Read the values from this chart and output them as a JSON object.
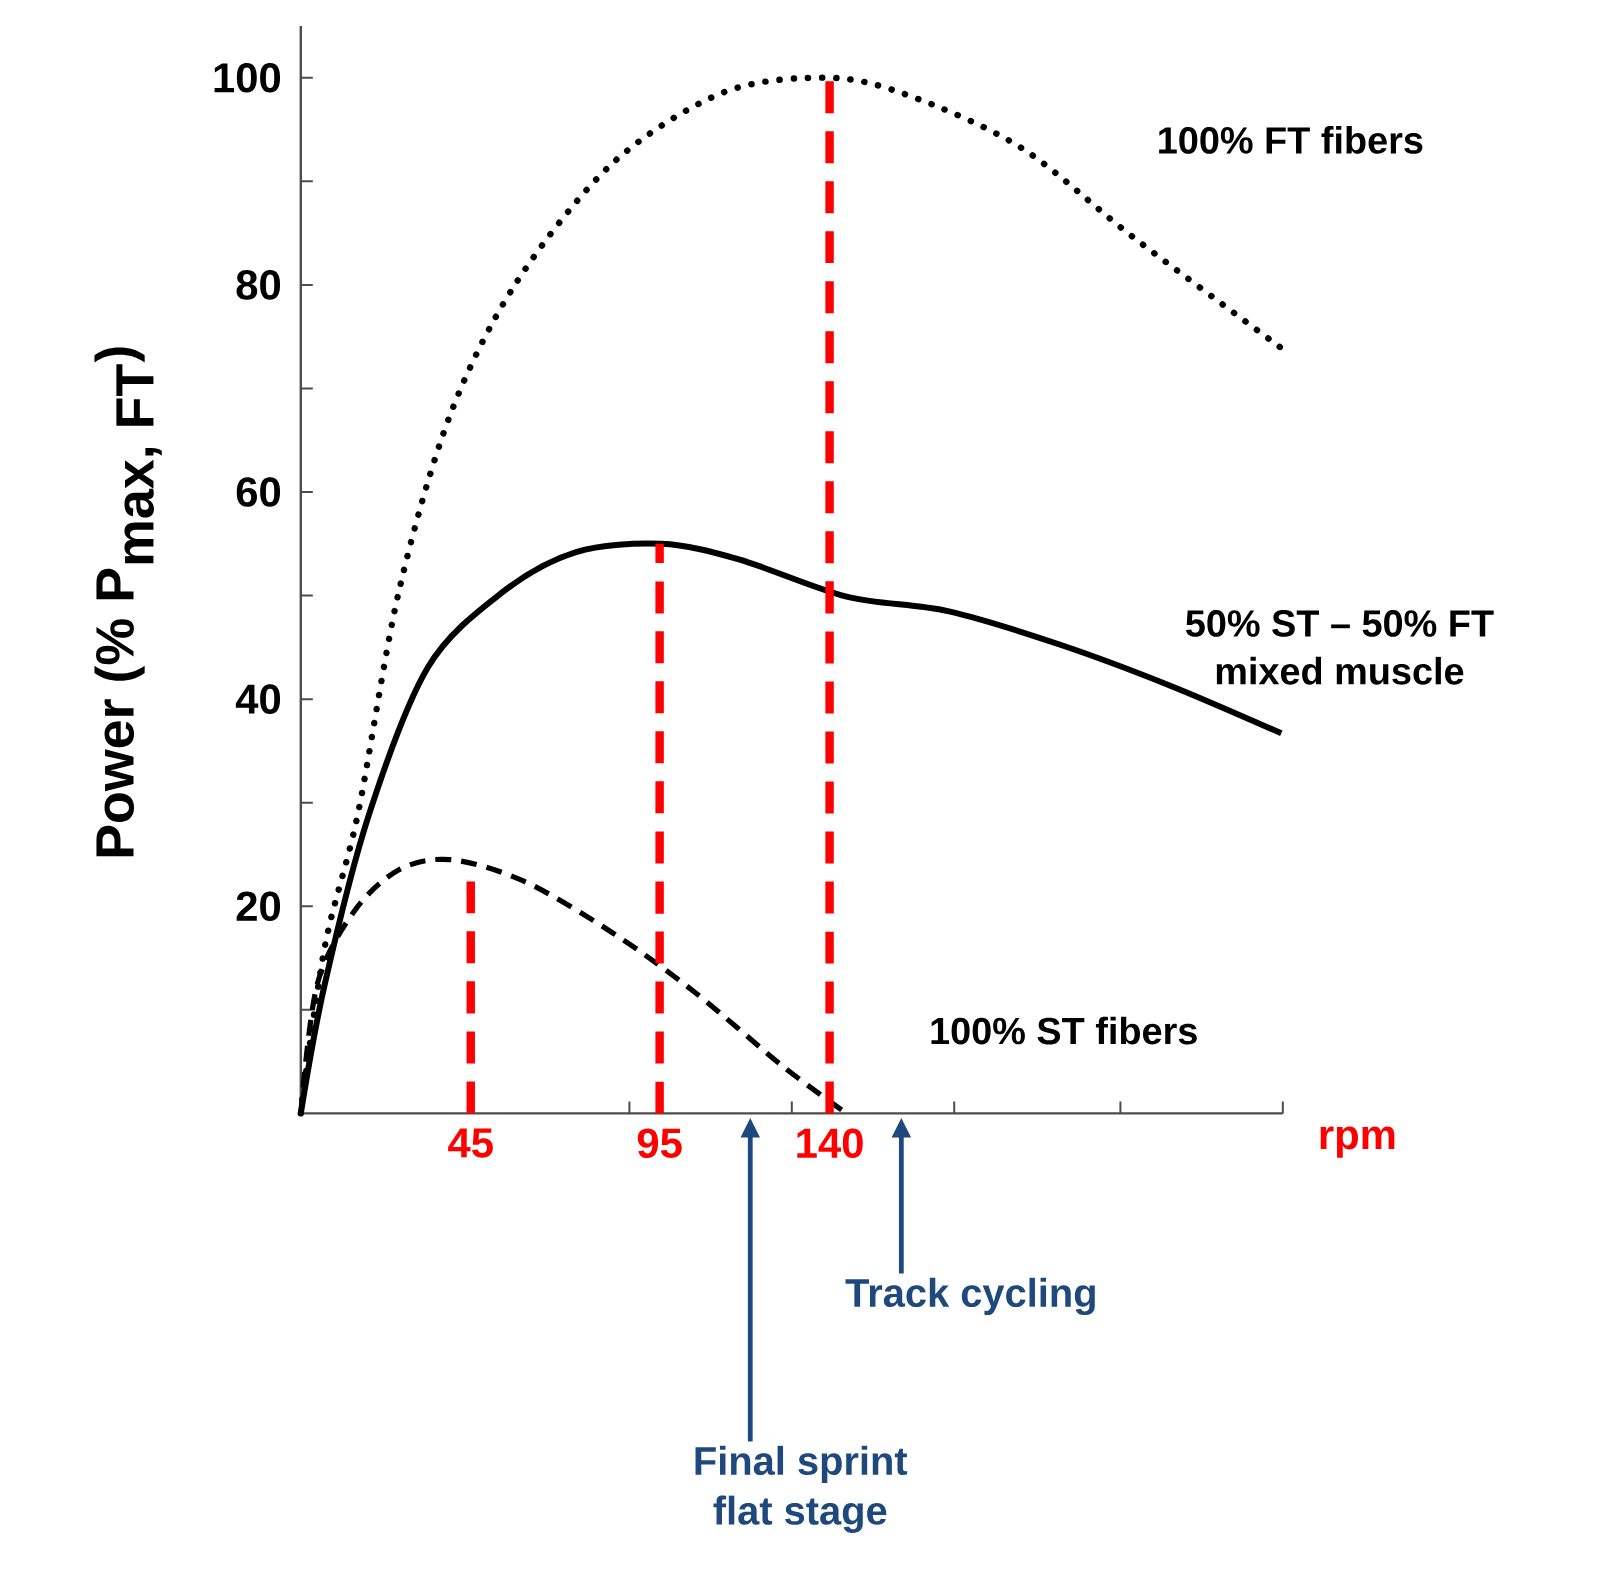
{
  "chart_data": {
    "type": "line",
    "xlabel": "rpm",
    "ylabel": "\\textbf{Power (\\% P}_{\\textbf{max, FT}}\\textbf{)}",
    "xlim": [
      0,
      260
    ],
    "ylim": [
      0,
      105
    ],
    "xticks": [
      45,
      95,
      140,
      {
        "value": 87,
        "label": null
      },
      {
        "value": 130,
        "label": null
      },
      {
        "value": 173,
        "label": null
      },
      {
        "value": 217,
        "label": null
      },
      {
        "value": 260,
        "label": null
      }
    ],
    "yticks": [
      20,
      40,
      60,
      80,
      100,
      {
        "value": 10,
        "label": null
      },
      {
        "value": 30,
        "label": null
      },
      {
        "value": 50,
        "label": null
      },
      {
        "value": 70,
        "label": null
      },
      {
        "value": 90,
        "label": null
      }
    ],
    "series": [
      {
        "name": "100% FT fibers",
        "color": "#000000",
        "line_style": "dotted",
        "x": [
          0,
          6.3,
          15.1,
          25.9,
          39.6,
          57.2,
          82.7,
          112,
          140,
          161.6,
          190.9,
          220.4,
          259.6
        ],
        "values": [
          0,
          16,
          28.9,
          50.3,
          67.5,
          80.3,
          91.8,
          98.6,
          100,
          98.2,
          93.2,
          84.6,
          73.9
        ]
      },
      {
        "name": "50% ST – 50% FT mixed muscle",
        "color": "#000000",
        "line_style": "solid",
        "x": [
          0,
          6.3,
          18,
          33.7,
          53.3,
          72.9,
          95.5,
          116,
          144.5,
          171.3,
          200.7,
          230.2,
          259.6
        ],
        "values": [
          0,
          12.4,
          28.8,
          43.1,
          50.3,
          54.2,
          55,
          53.5,
          49.9,
          48.5,
          45.3,
          41.3,
          36.7
        ]
      },
      {
        "name": "100% ST fibers",
        "color": "#000000",
        "line_style": "dashed",
        "x": [
          0,
          4.3,
          14.1,
          25.9,
          39.6,
          59.2,
          82.7,
          104.3,
          127.8,
          144.5
        ],
        "values": [
          0,
          12.4,
          19.5,
          23.5,
          24.5,
          22.4,
          17.4,
          11.7,
          4.5,
          0
        ]
      },
      {
        "color": "#ff0000",
        "line_style": "dashed",
        "x": [
          45,
          45
        ],
        "values": [
          0,
          22.4
        ]
      },
      {
        "color": "#ff0000",
        "line_style": "dashed",
        "x": [
          95,
          95
        ],
        "values": [
          0,
          55
        ]
      },
      {
        "color": "#ff0000",
        "line_style": "dashed",
        "x": [
          140,
          140
        ],
        "values": [
          0,
          100
        ]
      }
    ],
    "annotations": [
      "Final sprint flat stage",
      "Track cycling"
    ]
  }
}
